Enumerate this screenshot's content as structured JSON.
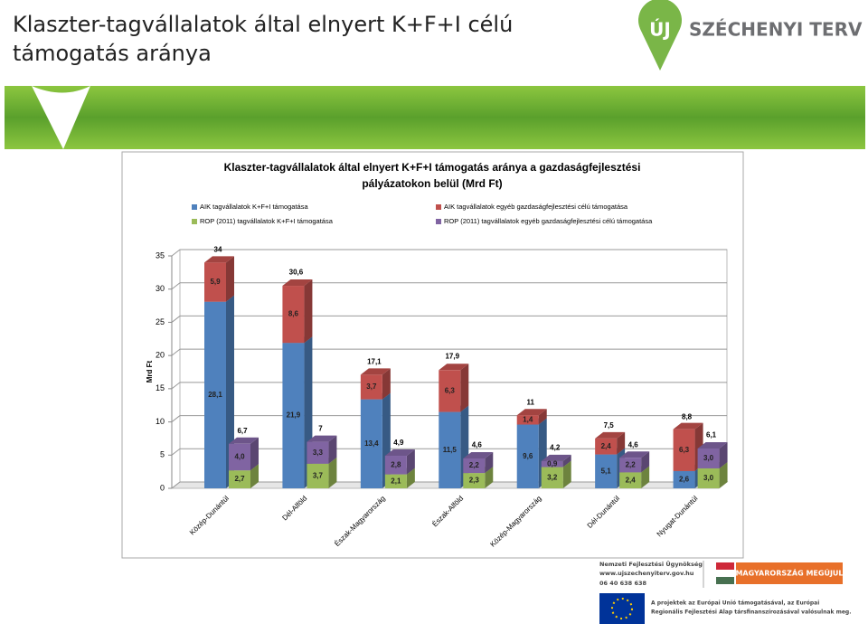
{
  "slide": {
    "title_lines": [
      "Klaszter-tagvállalatok által elnyert K+F+I célú",
      "támogatás aránya"
    ],
    "logo_mark": "ÚJ",
    "logo_text": "SZÉCHENYI TERV"
  },
  "footer": {
    "agency": "Nemzeti Fejlesztési Ügynökség",
    "url": "www.ujszechenyiterv.gov.hu",
    "phone": "06 40 638 638",
    "slogan": "MAGYARORSZÁG MEGÚJUL",
    "eu_lines": [
      "A projektek az Európai Unió támogatásával, az Európai",
      "Regionális Fejlesztési Alap társfinanszírozásával valósulnak meg."
    ]
  },
  "chart_data": {
    "type": "bar",
    "stacked": true,
    "title_lines": [
      "Klaszter-tagvállalatok által elnyert K+F+I támogatás aránya a gazdaságfejlesztési",
      "pályázatokon belül (Mrd Ft)"
    ],
    "y_label": "Mrd Ft",
    "categories": [
      "Közép-Dunántúl",
      "Dél-Alföld",
      "Észak-Magyarország",
      "Észak-Alföld",
      "Közép-Magyarország",
      "Dél-Dunántúl",
      "Nyugat-Dunántúl"
    ],
    "series": [
      {
        "name": "AIK tagvállalatok K+F+I támogatása",
        "color": "#4f81bd",
        "stack": 0,
        "values": [
          28.1,
          21.9,
          13.4,
          11.5,
          9.6,
          5.1,
          2.6
        ],
        "value_labels": [
          "28,1",
          "21,9",
          "13,4",
          "11,5",
          "9,6",
          "5,1",
          "2,6"
        ]
      },
      {
        "name": "AIK tagvállalatok egyéb gazdaságfejlesztési célú támogatása",
        "color": "#c0504d",
        "stack": 0,
        "values": [
          5.9,
          8.6,
          3.7,
          6.3,
          1.4,
          2.4,
          6.3
        ],
        "value_labels": [
          "5,9",
          "8,6",
          "3,7",
          "6,3",
          "1,4",
          "2,4",
          "6,3"
        ]
      },
      {
        "name": "ROP (2011) tagvállalatok K+F+I támogatása",
        "color": "#9bbb59",
        "stack": 1,
        "values": [
          2.7,
          3.7,
          2.1,
          2.3,
          3.2,
          2.4,
          3.0
        ],
        "value_labels": [
          "2,7",
          "3,7",
          "2,1",
          "2,3",
          "3,2",
          "2,4",
          "3,0"
        ]
      },
      {
        "name": "ROP (2011) tagvállalatok egyéb gazdaságfejlesztési célú támogatása",
        "color": "#8064a2",
        "stack": 1,
        "values": [
          4.0,
          3.3,
          2.8,
          2.2,
          0.9,
          2.2,
          3.0
        ],
        "value_labels": [
          "4,0",
          "3,3",
          "2,8",
          "2,2",
          "0,9",
          "2,2",
          "3,0"
        ]
      }
    ],
    "totals": [
      {
        "stack": 0,
        "values": [
          34,
          30.6,
          17.1,
          17.9,
          11,
          7.5,
          8.8
        ],
        "value_labels": [
          "34",
          "30,6",
          "17,1",
          "17,9",
          "11",
          "7,5",
          "8,8"
        ]
      },
      {
        "stack": 1,
        "values": [
          6.7,
          7,
          4.9,
          4.6,
          4.2,
          4.6,
          6.1
        ],
        "value_labels": [
          "6,7",
          "7",
          "4,9",
          "4,6",
          "4,2",
          "4,6",
          "6,1"
        ]
      }
    ],
    "ylim": [
      0,
      35
    ],
    "yticks": [
      0,
      5,
      10,
      15,
      20,
      25,
      30,
      35
    ],
    "grid": true
  }
}
